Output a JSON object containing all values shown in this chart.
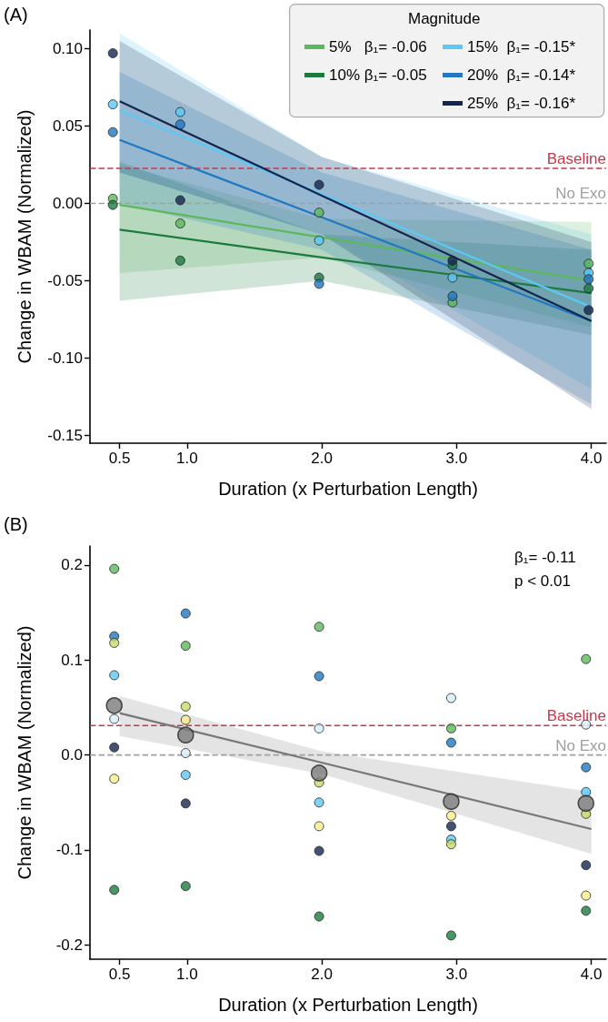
{
  "chart_data": [
    {
      "type": "scatter",
      "xlabel": "Duration (x Perturbation Length)",
      "ylabel": "Change in WBAM (Normalized)",
      "legend_title": "Magnitude",
      "annotations": [
        "(A)"
      ],
      "xlim": [
        0.28,
        4.11
      ],
      "xticks": [
        0.5,
        {
          "value": 1,
          "label": "1.0"
        },
        {
          "value": 2,
          "label": "2.0"
        },
        {
          "value": 3,
          "label": "3.0"
        },
        {
          "value": 4,
          "label": "4.0"
        }
      ],
      "ylim": [
        -0.155,
        0.112
      ],
      "yticks": [
        {
          "value": -0.15,
          "label": "-0.15"
        },
        {
          "value": -0.1,
          "label": "-0.10"
        },
        -0.05,
        {
          "value": 0,
          "label": "0.00"
        },
        0.05,
        {
          "value": 0.1,
          "label": "0.10"
        }
      ],
      "grid": false,
      "legend": "top right",
      "marker": "circle",
      "ref_lines": [
        {
          "axis": "y",
          "value": 0.0226,
          "label": "Baseline",
          "color": "#c8374a",
          "line_style": "dashed"
        },
        {
          "axis": "y",
          "value": 0,
          "label": "No Exo",
          "color": "#a0a0a0",
          "line_style": "dashed"
        }
      ],
      "series": [
        {
          "type": "line",
          "name": "5%   β₁= -0.06",
          "color": "#5cb85c",
          "marker": "none",
          "x": [
            0.5,
            2,
            4
          ],
          "values": [
            -0.001,
            -0.022,
            -0.05
          ],
          "lower": [
            -0.045,
            -0.035,
            -0.08
          ],
          "upper": [
            0.025,
            -0.01,
            -0.012
          ]
        },
        {
          "type": "line",
          "name": "10% β₁= -0.05",
          "color": "#1b7a3e",
          "marker": "none",
          "x": [
            0.5,
            2,
            4
          ],
          "values": [
            -0.017,
            -0.035,
            -0.058
          ],
          "lower": [
            -0.063,
            -0.05,
            -0.085
          ],
          "upper": [
            0.027,
            -0.02,
            -0.03
          ]
        },
        {
          "type": "line",
          "name": "15%  β₁= -0.15*",
          "color": "#5bc8f5",
          "marker": "none",
          "x": [
            0.5,
            2,
            4
          ],
          "values": [
            0.06,
            0.006,
            -0.067
          ],
          "lower": [
            0.02,
            -0.02,
            -0.12
          ],
          "upper": [
            0.11,
            0.03,
            -0.02
          ]
        },
        {
          "type": "line",
          "name": "20%  β₁= -0.14*",
          "color": "#1f78c1",
          "marker": "none",
          "x": [
            0.5,
            2,
            4
          ],
          "values": [
            0.041,
            -0.009,
            -0.076
          ],
          "lower": [
            0,
            -0.03,
            -0.13
          ],
          "upper": [
            0.085,
            0.02,
            -0.03
          ]
        },
        {
          "type": "line",
          "name": "25%  β₁= -0.16*",
          "color": "#14264f",
          "marker": "none",
          "x": [
            0.5,
            2,
            4
          ],
          "values": [
            0.066,
            0.005,
            -0.076
          ],
          "lower": [
            0.02,
            -0.02,
            -0.133
          ],
          "upper": [
            0.105,
            0.03,
            -0.025
          ]
        },
        {
          "color": "#5cb85c",
          "x": [
            0.45,
            0.95,
            1.98,
            2.97,
            3.98
          ],
          "values": [
            0.003,
            -0.013,
            -0.006,
            -0.064,
            -0.039
          ]
        },
        {
          "color": "#1b7a3e",
          "x": [
            0.45,
            0.95,
            1.98,
            2.97,
            3.98
          ],
          "values": [
            -0.001,
            -0.037,
            -0.048,
            -0.04,
            -0.055
          ]
        },
        {
          "color": "#5bc8f5",
          "x": [
            0.45,
            0.95,
            1.98,
            2.97,
            3.98
          ],
          "values": [
            0.064,
            0.059,
            -0.024,
            -0.048,
            -0.045
          ]
        },
        {
          "color": "#1f78c1",
          "x": [
            0.45,
            0.95,
            1.98,
            2.97,
            3.98
          ],
          "values": [
            0.046,
            0.051,
            -0.052,
            -0.06,
            -0.049
          ]
        },
        {
          "color": "#14264f",
          "x": [
            0.45,
            0.95,
            1.98,
            2.97,
            3.98
          ],
          "values": [
            0.097,
            0.002,
            0.012,
            -0.037,
            -0.069
          ]
        }
      ]
    },
    {
      "type": "scatter",
      "xlabel": "Duration (x Perturbation Length)",
      "ylabel": "Change in WBAM (Normalized)",
      "annotations": [
        "(B)",
        "β₁= -0.11",
        "p < 0.01"
      ],
      "xlim": [
        0.28,
        4.11
      ],
      "xticks": [
        0.5,
        {
          "value": 1,
          "label": "1.0"
        },
        {
          "value": 2,
          "label": "2.0"
        },
        {
          "value": 3,
          "label": "3.0"
        },
        {
          "value": 4,
          "label": "4.0"
        }
      ],
      "ylim": [
        -0.215,
        0.22
      ],
      "yticks": [
        -0.2,
        -0.1,
        {
          "value": 0,
          "label": "0.0"
        },
        0.1,
        0.2
      ],
      "grid": false,
      "marker": "circle",
      "ref_lines": [
        {
          "axis": "y",
          "value": 0.031,
          "label": "Baseline",
          "color": "#c8374a",
          "line_style": "dashed"
        },
        {
          "axis": "y",
          "value": 0,
          "label": "No Exo",
          "color": "#a0a0a0",
          "line_style": "dashed"
        }
      ],
      "series": [
        {
          "type": "line",
          "color": "#777777",
          "marker": "none",
          "x": [
            0.5,
            2,
            4
          ],
          "values": [
            0.044,
            -0.008,
            -0.078
          ],
          "lower": [
            0.02,
            -0.02,
            -0.104
          ],
          "upper": [
            0.062,
            0.004,
            -0.039
          ]
        },
        {
          "color": "#5cb85c",
          "x": [
            0.46,
            0.99,
            1.98,
            2.96,
            3.96
          ],
          "values": [
            0.196,
            0.115,
            0.135,
            0.028,
            0.101
          ]
        },
        {
          "color": "#1b7a3e",
          "x": [
            0.46,
            0.99,
            1.98,
            2.96,
            3.96
          ],
          "values": [
            -0.142,
            -0.138,
            -0.17,
            -0.19,
            -0.164
          ]
        },
        {
          "color": "#5bc8f5",
          "x": [
            0.46,
            0.99,
            1.98,
            2.96,
            3.96
          ],
          "values": [
            0.084,
            -0.021,
            -0.05,
            -0.089,
            -0.039
          ]
        },
        {
          "color": "#1f78c1",
          "x": [
            0.46,
            0.99,
            1.98,
            2.96,
            3.96
          ],
          "values": [
            0.125,
            0.149,
            0.083,
            0.013,
            -0.013
          ]
        },
        {
          "color": "#14264f",
          "x": [
            0.46,
            0.99,
            1.98,
            2.96,
            3.96
          ],
          "values": [
            0.008,
            -0.051,
            -0.101,
            -0.075,
            -0.116
          ]
        },
        {
          "color": "#f5ee8a",
          "x": [
            0.46,
            0.99,
            1.98,
            2.96,
            3.96
          ],
          "values": [
            -0.025,
            0.037,
            -0.075,
            -0.064,
            -0.148
          ]
        },
        {
          "color": "#c5dc6a",
          "x": [
            0.46,
            0.99,
            1.98,
            2.96,
            3.96
          ],
          "values": [
            0.118,
            0.051,
            -0.029,
            -0.094,
            -0.062
          ]
        },
        {
          "color": "#d6ecf8",
          "x": [
            0.46,
            0.99,
            1.98,
            2.96,
            3.96
          ],
          "values": [
            0.038,
            0.002,
            0.028,
            0.06,
            0.032
          ]
        },
        {
          "type": "bubble",
          "color": "#7a7a7a",
          "x": [
            0.46,
            0.99,
            1.98,
            2.96,
            3.96
          ],
          "values": [
            0.052,
            0.021,
            -0.019,
            -0.049,
            -0.051
          ],
          "sizes": [
            1,
            1,
            1,
            1,
            1
          ]
        }
      ]
    }
  ]
}
